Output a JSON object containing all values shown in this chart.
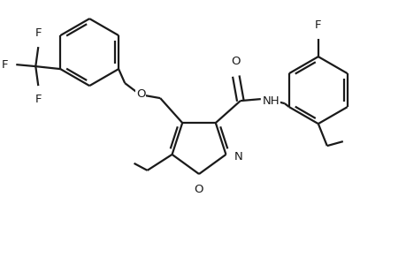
{
  "bg_color": "#ffffff",
  "line_color": "#1a1a1a",
  "line_width": 1.6,
  "font_size": 9.5,
  "fig_width": 4.6,
  "fig_height": 3.0,
  "dpi": 100,
  "xlim": [
    0,
    46
  ],
  "ylim": [
    0,
    30
  ]
}
